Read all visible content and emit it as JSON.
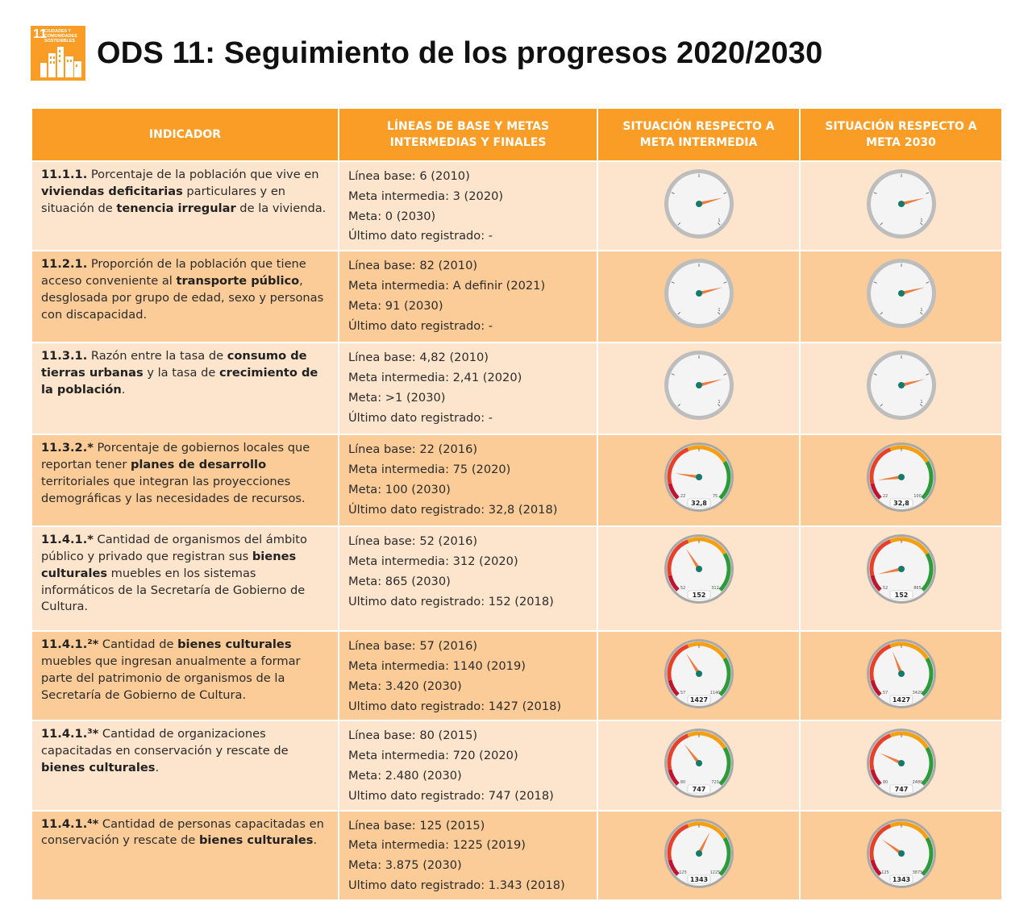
{
  "header": {
    "logo_number": "11",
    "logo_text": "CIUDADES Y COMUNIDADES SOSTENIBLES",
    "title": "ODS 11: Seguimiento de los progresos 2020/2030",
    "accent_color": "#F99D26"
  },
  "table": {
    "columns": [
      "INDICADOR",
      "LÍNEAS DE BASE Y METAS INTERMEDIAS Y FINALES",
      "SITUACIÓN RESPECTO A META INTERMEDIA",
      "SITUACIÓN RESPECTO A  META 2030"
    ],
    "rows": [
      {
        "indicator": [
          {
            "t": "11.1.1.",
            "b": true
          },
          {
            "t": " Porcentaje de la población que vive en ",
            "b": false
          },
          {
            "t": "viviendas deficitarias",
            "b": true
          },
          {
            "t": " particulares y en situación de ",
            "b": false
          },
          {
            "t": "tenencia irregular",
            "b": true
          },
          {
            "t": " de la vivienda.",
            "b": false
          }
        ],
        "values": [
          "Línea base: 6 (2010)",
          "Meta intermedia: 3 (2020)",
          "Meta: 0 (2030)",
          "Último dato registrado: -"
        ],
        "gauges": [
          {
            "style": "grey",
            "value": "",
            "fraction": 0.78,
            "min_label": "",
            "max_label": "1"
          },
          {
            "style": "grey",
            "value": "",
            "fraction": 0.78,
            "min_label": "",
            "max_label": "1"
          }
        ]
      },
      {
        "indicator": [
          {
            "t": "11.2.1.",
            "b": true
          },
          {
            "t": " Proporción de la población que tiene acceso conveniente al ",
            "b": false
          },
          {
            "t": "transporte público",
            "b": true
          },
          {
            "t": ", desglosada por grupo de edad, sexo y personas con discapacidad.",
            "b": false
          }
        ],
        "values": [
          "Línea base: 82 (2010)",
          "Meta intermedia: A definir (2021)",
          "Meta: 91 (2030)",
          "Último dato registrado: -"
        ],
        "gauges": [
          {
            "style": "grey",
            "value": "",
            "fraction": 0.78,
            "min_label": "",
            "max_label": "1"
          },
          {
            "style": "grey",
            "value": "",
            "fraction": 0.78,
            "min_label": "",
            "max_label": "1"
          }
        ]
      },
      {
        "indicator": [
          {
            "t": "11.3.1.",
            "b": true
          },
          {
            "t": " Razón entre la tasa de ",
            "b": false
          },
          {
            "t": "consumo de tierras urbanas",
            "b": true
          },
          {
            "t": " y la tasa de ",
            "b": false
          },
          {
            "t": "crecimiento de la población",
            "b": true
          },
          {
            "t": ".",
            "b": false
          }
        ],
        "values": [
          "Línea base: 4,82 (2010)",
          "Meta intermedia: 2,41 (2020)",
          "Meta: >1 (2030)",
          "Último dato registrado: -"
        ],
        "gauges": [
          {
            "style": "grey",
            "value": "",
            "fraction": 0.78,
            "min_label": "",
            "max_label": "1"
          },
          {
            "style": "grey",
            "value": "",
            "fraction": 0.78,
            "min_label": "",
            "max_label": "1"
          }
        ]
      },
      {
        "indicator": [
          {
            "t": "11.3.2.*",
            "b": true
          },
          {
            "t": " Porcentaje de gobiernos locales que reportan tener ",
            "b": false
          },
          {
            "t": "planes de desarrollo",
            "b": true
          },
          {
            "t": " territoriales que integran las proyecciones demográficas y las necesidades de recursos.",
            "b": false
          }
        ],
        "values": [
          "Línea base: 22 (2016)",
          "Meta intermedia: 75 (2020)",
          "Meta: 100 (2030)",
          "Último dato registrado: 32,8 (2018)"
        ],
        "gauges": [
          {
            "style": "color",
            "value": "32,8",
            "fraction": 0.2,
            "min_label": "22",
            "max_label": "75"
          },
          {
            "style": "color",
            "value": "32,8",
            "fraction": 0.14,
            "min_label": "22",
            "max_label": "100"
          }
        ]
      },
      {
        "indicator": [
          {
            "t": "11.4.1.*",
            "b": true
          },
          {
            "t": " Cantidad de organismos del ámbito público y privado que registran sus ",
            "b": false
          },
          {
            "t": "bienes culturales",
            "b": true
          },
          {
            "t": " muebles en los sistemas informáticos de la Secretaría de Gobierno de Cultura.",
            "b": false
          }
        ],
        "values": [
          "Línea base: 52 (2016)",
          "Meta intermedia: 312 (2020)",
          "Meta: 865 (2030)",
          "Ultimo dato registrado: 152 (2018)"
        ],
        "gauges": [
          {
            "style": "color",
            "value": "152",
            "fraction": 0.38,
            "min_label": "52",
            "max_label": "312"
          },
          {
            "style": "color",
            "value": "152",
            "fraction": 0.12,
            "min_label": "52",
            "max_label": "865"
          }
        ]
      },
      {
        "indicator": [
          {
            "t": "11.4.1.²*",
            "b": true
          },
          {
            "t": " Cantidad de ",
            "b": false
          },
          {
            "t": "bienes culturales",
            "b": true
          },
          {
            "t": " muebles que ingresan anualmente a formar parte del patrimonio de organismos de la Secretaría de Gobierno de Cultura.",
            "b": false
          }
        ],
        "values": [
          "Línea base: 57 (2016)",
          "Meta intermedia: 1140 (2019)",
          "Meta: 3.420 (2030)",
          "Ultimo dato registrado: 1427 (2018)"
        ],
        "gauges": [
          {
            "style": "color",
            "value": "1427",
            "fraction": 0.38,
            "min_label": "57",
            "max_label": "1140"
          },
          {
            "style": "color",
            "value": "1427",
            "fraction": 0.42,
            "min_label": "57",
            "max_label": "3420"
          }
        ]
      },
      {
        "indicator": [
          {
            "t": "11.4.1.³*",
            "b": true
          },
          {
            "t": " Cantidad de organizaciones capacitadas en conservación y rescate de ",
            "b": false
          },
          {
            "t": "bienes culturales",
            "b": true
          },
          {
            "t": ".",
            "b": false
          }
        ],
        "values": [
          "Línea base: 80 (2015)",
          "Meta intermedia: 720 (2020)",
          "Meta: 2.480 (2030)",
          "Ultimo dato registrado: 747 (2018)"
        ],
        "gauges": [
          {
            "style": "color",
            "value": "747",
            "fraction": 0.36,
            "min_label": "80",
            "max_label": "720"
          },
          {
            "style": "color",
            "value": "747",
            "fraction": 0.26,
            "min_label": "80",
            "max_label": "2480"
          }
        ]
      },
      {
        "indicator": [
          {
            "t": "11.4.1.⁴*",
            "b": true
          },
          {
            "t": " Cantidad de personas capacitadas en conservación y rescate de ",
            "b": false
          },
          {
            "t": "bienes culturales",
            "b": true
          },
          {
            "t": ".",
            "b": false
          }
        ],
        "values": [
          "Línea base: 125 (2015)",
          "Meta intermedia: 1225 (2019)",
          "Meta: 3.875 (2030)",
          "Ultimo dato registrado: 1.343 (2018)"
        ],
        "gauges": [
          {
            "style": "color",
            "value": "1343",
            "fraction": 0.6,
            "min_label": "125",
            "max_label": "1225"
          },
          {
            "style": "color",
            "value": "1343",
            "fraction": 0.3,
            "min_label": "125",
            "max_label": "3875"
          }
        ]
      }
    ]
  }
}
